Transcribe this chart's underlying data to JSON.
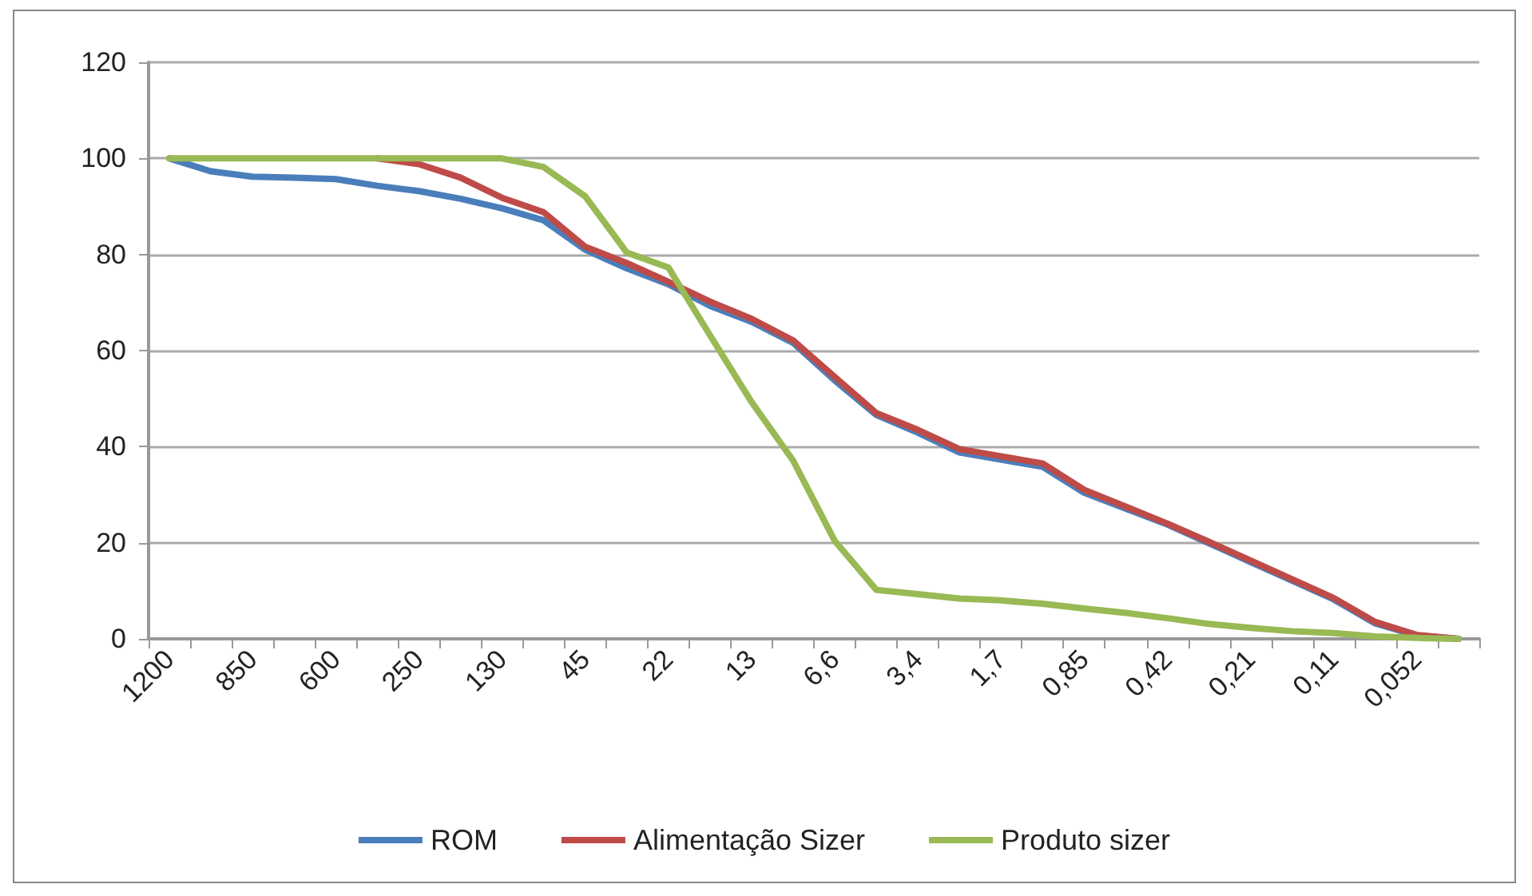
{
  "chart_data": {
    "type": "line",
    "categories": [
      "1200",
      null,
      "850",
      null,
      "600",
      null,
      "250",
      null,
      "130",
      null,
      "45",
      null,
      "22",
      null,
      "13",
      null,
      "6,6",
      null,
      "3,4",
      null,
      "1,7",
      null,
      "0,85",
      null,
      "0,42",
      null,
      "0,21",
      null,
      "0,11",
      null,
      "0,052",
      null
    ],
    "series": [
      {
        "name": "ROM",
        "color": "#4a7ebb",
        "values": [
          100,
          97.3,
          96.2,
          96,
          95.7,
          94.3,
          93.2,
          91.6,
          89.6,
          87.1,
          81,
          77.1,
          73.8,
          69.3,
          66,
          61.6,
          53.8,
          46.6,
          42.9,
          38.8,
          37.3,
          35.8,
          30.4,
          27.1,
          23.8,
          19.9,
          16,
          12.1,
          8.2,
          3.2,
          0.7,
          0
        ]
      },
      {
        "name": "Alimentação Sizer",
        "color": "#be4b48",
        "values": [
          null,
          null,
          null,
          null,
          null,
          100,
          98.8,
          96,
          91.8,
          88.8,
          81.6,
          78.2,
          74.3,
          70.2,
          66.6,
          62.1,
          54.5,
          47,
          43.5,
          39.5,
          38,
          36.5,
          31,
          27.5,
          24,
          20.2,
          16.3,
          12.4,
          8.5,
          3.5,
          0.8,
          0
        ]
      },
      {
        "name": "Produto sizer",
        "color": "#98b954",
        "values": [
          100,
          100,
          100,
          100,
          100,
          100,
          100,
          100,
          100,
          98.2,
          92.1,
          80.4,
          77.3,
          63.2,
          49.3,
          37.1,
          20.4,
          10.2,
          9.3,
          8.4,
          8,
          7.3,
          6.3,
          5.4,
          4.3,
          3.1,
          2.3,
          1.6,
          1.2,
          0.5,
          0.2,
          0
        ]
      }
    ],
    "ylim": [
      0,
      120
    ],
    "yticks": [
      0,
      20,
      40,
      60,
      80,
      100,
      120
    ],
    "grid": "y",
    "legend": "bottom",
    "marker": "none",
    "line_style": "solid"
  }
}
